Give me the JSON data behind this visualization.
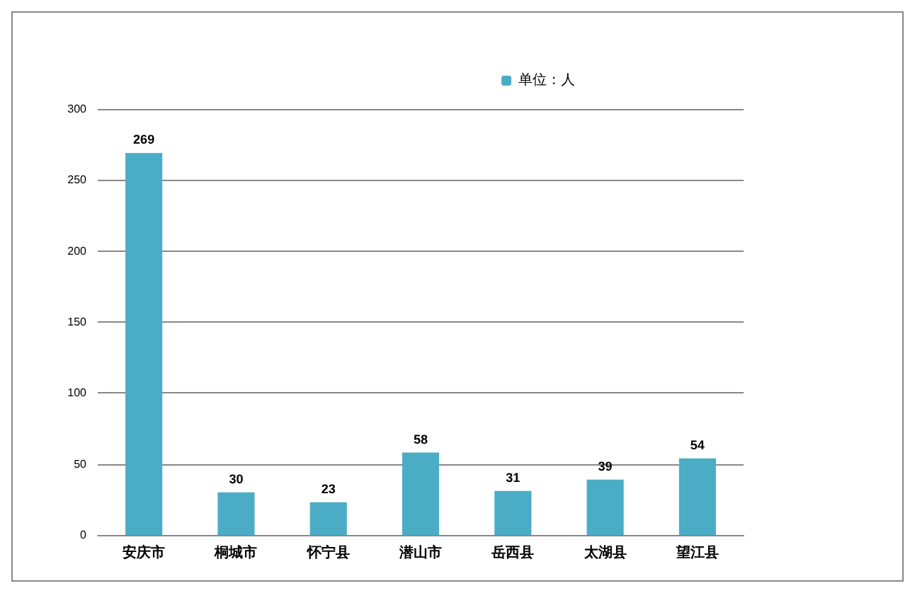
{
  "chart_data": {
    "type": "bar",
    "categories": [
      "安庆市",
      "桐城市",
      "怀宁县",
      "潜山市",
      "岳西县",
      "太湖县",
      "望江县"
    ],
    "series": [
      {
        "name": "单位：人",
        "color": "#4bacc6",
        "values": [
          269,
          30,
          23,
          58,
          31,
          39,
          54
        ]
      }
    ],
    "ylim": [
      0,
      300
    ],
    "yticks": [
      0,
      50,
      100,
      150,
      200,
      250,
      300
    ],
    "grid": "y",
    "legend": "top",
    "data_labels": true
  }
}
